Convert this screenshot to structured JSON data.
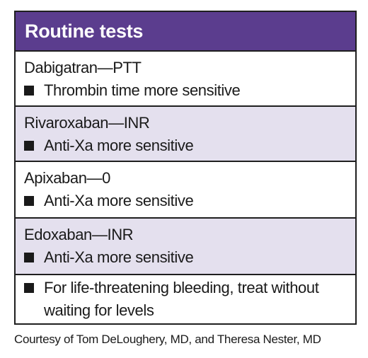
{
  "colors": {
    "header_bg": "#5b3d8e",
    "shade_bg": "#e4e0ee"
  },
  "panel": {
    "title": "Routine tests",
    "rows": [
      {
        "heading": "Dabigatran—PTT",
        "bullet": "Thrombin time more sensitive"
      },
      {
        "heading": "Rivaroxaban—INR",
        "bullet": "Anti-Xa more sensitive"
      },
      {
        "heading": "Apixaban—0",
        "bullet": "Anti-Xa more sensitive"
      },
      {
        "heading": "Edoxaban—INR",
        "bullet": "Anti-Xa more sensitive"
      }
    ],
    "final_bullet": "For life-threatening bleeding, treat without waiting for levels"
  },
  "credit": "Courtesy of Tom DeLoughery, MD, and Theresa Nester, MD"
}
